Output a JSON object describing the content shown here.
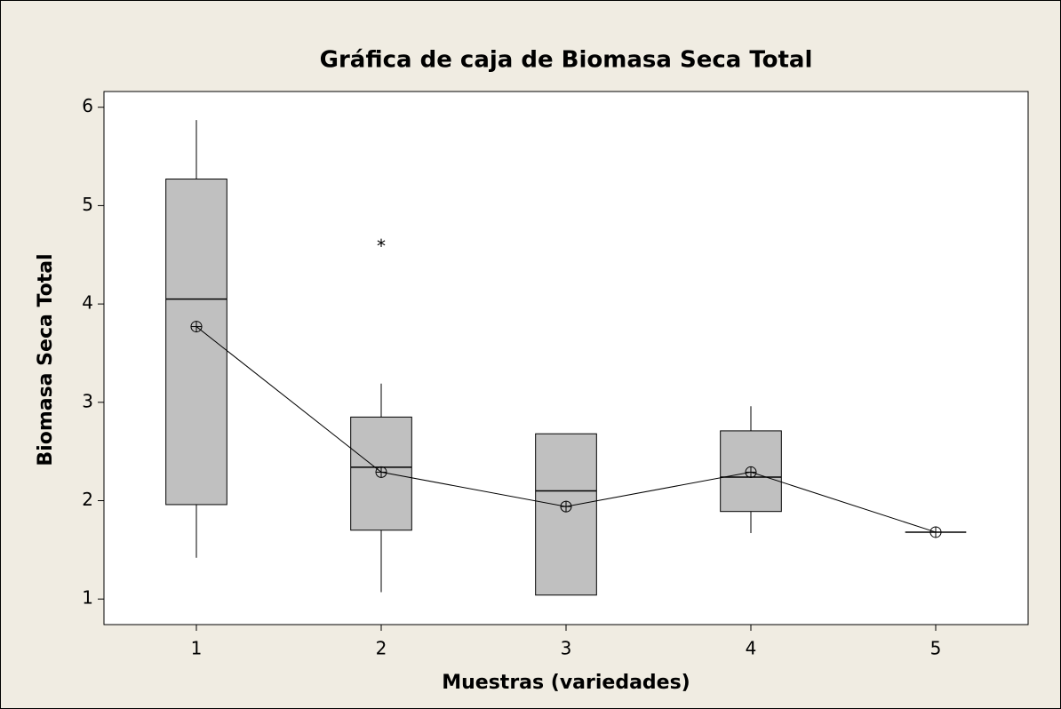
{
  "chart_data": {
    "type": "box",
    "title": "Gráfica de caja de Biomasa Seca Total",
    "xlabel": "Muestras (variedades)",
    "ylabel": "Biomasa Seca Total",
    "categories": [
      "1",
      "2",
      "3",
      "4",
      "5"
    ],
    "color": "#c0c0c0",
    "boxes": [
      {
        "whisker_low": 1.42,
        "q1": 1.96,
        "median": 4.05,
        "q3": 5.27,
        "whisker_high": 5.87,
        "mean": 3.77,
        "outliers": []
      },
      {
        "whisker_low": 1.07,
        "q1": 1.7,
        "median": 2.34,
        "q3": 2.85,
        "whisker_high": 3.19,
        "mean": 2.29,
        "outliers": [
          4.61
        ]
      },
      {
        "whisker_low": 1.04,
        "q1": 1.04,
        "median": 2.1,
        "q3": 2.68,
        "whisker_high": 2.68,
        "mean": 1.94,
        "outliers": []
      },
      {
        "whisker_low": 1.67,
        "q1": 1.89,
        "median": 2.24,
        "q3": 2.71,
        "whisker_high": 2.96,
        "mean": 2.29,
        "outliers": []
      },
      {
        "whisker_low": 1.68,
        "q1": 1.68,
        "median": 1.68,
        "q3": 1.68,
        "whisker_high": 1.68,
        "mean": 1.68,
        "outliers": []
      }
    ],
    "connect_means": true,
    "ylim": [
      0.74,
      6.16
    ],
    "yticks": [
      1,
      2,
      3,
      4,
      5,
      6
    ]
  }
}
